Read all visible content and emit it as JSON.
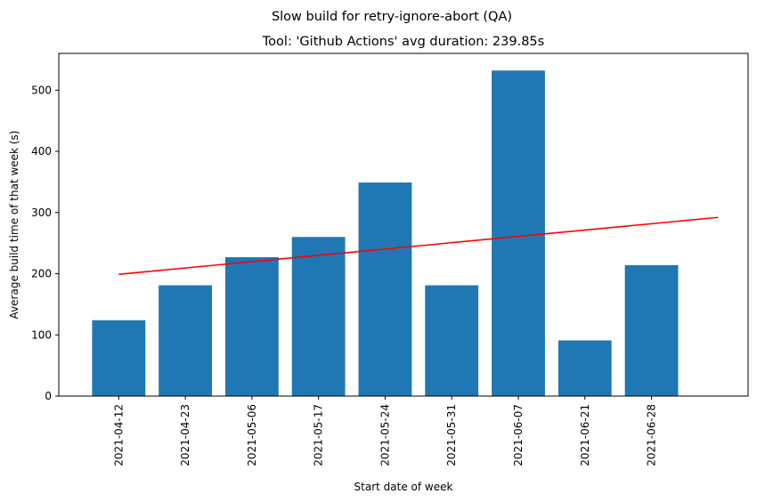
{
  "figure": {
    "suptitle": "Slow build for retry-ignore-abort (QA)",
    "title": "Tool: 'Github Actions' avg duration: 239.85s"
  },
  "chart_data": {
    "type": "bar",
    "title": "Tool: 'Github Actions' avg duration: 239.85s",
    "xlabel": "Start date of week",
    "ylabel": "Average build time of that week (s)",
    "categories": [
      "2021-04-12",
      "2021-04-23",
      "2021-05-06",
      "2021-05-17",
      "2021-05-24",
      "2021-05-31",
      "2021-06-07",
      "2021-06-21",
      "2021-06-28"
    ],
    "values": [
      124,
      181,
      227,
      260,
      349,
      181,
      532,
      91,
      214
    ],
    "bar_color": "#1f77b4",
    "ylim": [
      0,
      560
    ],
    "yticks": [
      0,
      100,
      200,
      300,
      400,
      500
    ],
    "trend_line": {
      "color": "#ff0000",
      "x_start_index": 0,
      "x_end_index": 9,
      "y_start": 199,
      "y_end": 292
    },
    "grid": false,
    "legend": "none"
  }
}
